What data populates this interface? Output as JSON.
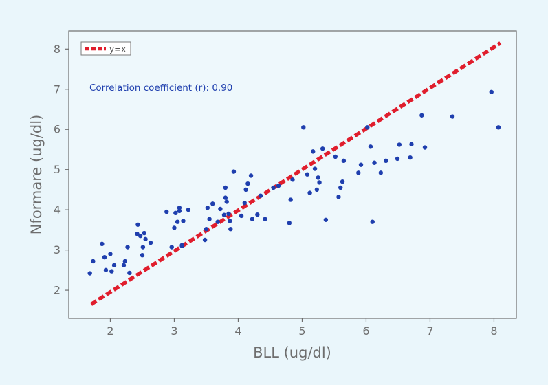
{
  "chart_data": {
    "type": "scatter",
    "title": "",
    "xlabel": "BLL (ug/dl)",
    "ylabel": "Nformare (ug/dl)",
    "xlim": [
      1.35,
      8.35
    ],
    "ylim": [
      1.3,
      8.45
    ],
    "x_ticks": [
      "2",
      "3",
      "4",
      "5",
      "6",
      "7",
      "8"
    ],
    "y_ticks": [
      "2",
      "3",
      "4",
      "5",
      "6",
      "7",
      "8"
    ],
    "grid": false,
    "legend_position": "top-left",
    "annotation": "Correlation coefficient (r): 0.90",
    "series": [
      {
        "name": "y=x",
        "style": "dashed-line",
        "color": "#e01e2d",
        "x": [
          1.7,
          8.1
        ],
        "y": [
          1.65,
          8.15
        ]
      },
      {
        "style": "markers",
        "color": "#1f3fae",
        "x": [
          1.68,
          1.73,
          1.87,
          1.91,
          1.93,
          2.0,
          2.02,
          2.06,
          2.21,
          2.23,
          2.27,
          2.3,
          2.42,
          2.43,
          2.47,
          2.5,
          2.51,
          2.53,
          2.55,
          2.63,
          2.88,
          2.96,
          3.0,
          3.02,
          3.05,
          3.08,
          3.08,
          3.12,
          3.12,
          3.14,
          3.22,
          3.48,
          3.5,
          3.52,
          3.55,
          3.6,
          3.68,
          3.72,
          3.78,
          3.8,
          3.8,
          3.82,
          3.85,
          3.87,
          3.88,
          3.93,
          4.05,
          4.1,
          4.12,
          4.15,
          4.2,
          4.22,
          4.3,
          4.35,
          4.42,
          4.55,
          4.63,
          4.8,
          4.82,
          4.85,
          5.02,
          5.08,
          5.12,
          5.17,
          5.2,
          5.23,
          5.25,
          5.27,
          5.32,
          5.37,
          5.52,
          5.57,
          5.6,
          5.63,
          5.65,
          5.88,
          5.92,
          6.02,
          6.07,
          6.1,
          6.13,
          6.23,
          6.31,
          6.49,
          6.52,
          6.69,
          6.71,
          6.87,
          6.92,
          7.35,
          7.96,
          8.07
        ],
        "y": [
          2.42,
          2.72,
          3.15,
          2.82,
          2.5,
          2.9,
          2.47,
          2.62,
          2.62,
          2.72,
          3.07,
          2.43,
          3.4,
          3.63,
          3.35,
          2.87,
          3.07,
          3.42,
          3.27,
          3.18,
          3.95,
          3.07,
          3.55,
          3.92,
          3.7,
          3.97,
          4.05,
          3.1,
          3.12,
          3.72,
          4.0,
          3.25,
          3.52,
          4.05,
          3.77,
          4.15,
          3.7,
          4.02,
          3.87,
          4.3,
          4.55,
          4.2,
          3.9,
          3.72,
          3.52,
          4.95,
          3.85,
          4.17,
          4.5,
          4.65,
          4.85,
          3.77,
          3.88,
          4.35,
          3.77,
          4.55,
          4.6,
          3.67,
          4.25,
          4.75,
          6.05,
          4.88,
          4.42,
          5.45,
          5.02,
          4.5,
          4.8,
          4.68,
          5.52,
          3.75,
          5.32,
          4.32,
          4.55,
          4.7,
          5.22,
          4.92,
          5.12,
          6.05,
          5.57,
          3.7,
          5.17,
          4.92,
          5.22,
          5.27,
          5.62,
          5.3,
          5.63,
          6.35,
          5.55,
          6.32,
          6.93,
          6.05
        ]
      }
    ]
  }
}
